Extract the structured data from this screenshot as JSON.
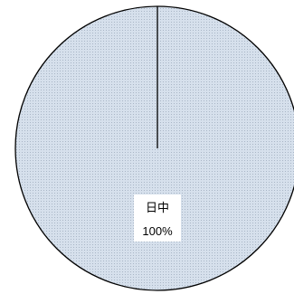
{
  "chart_data": {
    "type": "pie",
    "slices": [
      {
        "label": "日中",
        "value": 100,
        "percent_label": "100%"
      }
    ],
    "colors": {
      "slice_fill": "#d6e0ec",
      "pattern_dot": "#a9b6c6",
      "outline": "#000000",
      "label_box": "#ffffff"
    },
    "legend": "none",
    "start_angle_deg": 0
  }
}
